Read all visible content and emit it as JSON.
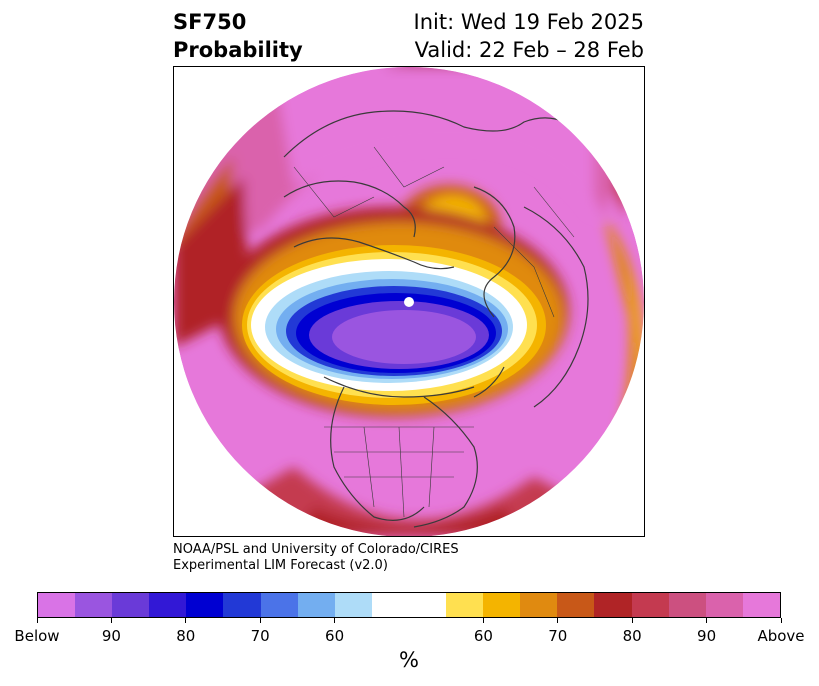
{
  "title": {
    "left_line1": "SF750",
    "left_line2": "Probability",
    "right_line1": "Init: Wed 19 Feb 2025",
    "right_line2": "Valid: 22 Feb – 28 Feb"
  },
  "credit": {
    "line1": "NOAA/PSL and University of Colorado/CIRES",
    "line2": "Experimental LIM Forecast (v2.0)"
  },
  "colorbar": {
    "unit": "%",
    "colors": [
      "#d973e6",
      "#9a55e0",
      "#6a3ad8",
      "#3218d6",
      "#0000d2",
      "#2239d6",
      "#4b73e8",
      "#73aef0",
      "#aedcf8",
      "#ffffff",
      "#ffe050",
      "#f4b400",
      "#e08a10",
      "#c85818",
      "#b02426",
      "#c43a50",
      "#cc5080",
      "#da62ac",
      "#e678da"
    ],
    "tick_labels": [
      "Below",
      "90",
      "80",
      "70",
      "60",
      "60",
      "70",
      "80",
      "90",
      "Above"
    ]
  },
  "map": {
    "projection": "north-polar-orthographic",
    "colors": {
      "above_max": "#e678da",
      "above_high": "#da62ac",
      "above_mid": "#c43a50",
      "above_red": "#b02426",
      "above_orange": "#c85818",
      "above_gold": "#f4b400",
      "above_yellow": "#ffe050",
      "neutral": "#ffffff",
      "below_light": "#aedcf8",
      "below_sky": "#73aef0",
      "below_blue": "#2239d6",
      "below_navy": "#0000d2",
      "below_violet": "#9a55e0",
      "coastline": "#3a3a3a"
    }
  }
}
